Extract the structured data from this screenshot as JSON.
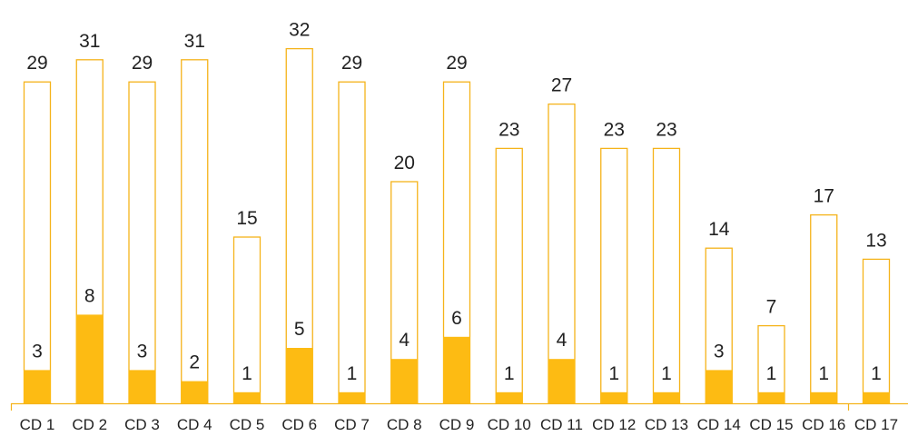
{
  "chart_data": {
    "type": "bar",
    "categories": [
      "CD 1",
      "CD 2",
      "CD 3",
      "CD 4",
      "CD 5",
      "CD 6",
      "CD 7",
      "CD 8",
      "CD 9",
      "CD 10",
      "CD 11",
      "CD 12",
      "CD 13",
      "CD 14",
      "CD 15",
      "CD 16",
      "CD 17"
    ],
    "series": [
      {
        "values": [
          29,
          31,
          29,
          31,
          15,
          32,
          29,
          20,
          29,
          23,
          27,
          23,
          23,
          14,
          7,
          17,
          13
        ]
      },
      {
        "values": [
          3,
          8,
          3,
          2,
          1,
          5,
          1,
          4,
          6,
          1,
          4,
          1,
          1,
          3,
          1,
          1,
          1
        ]
      }
    ],
    "title": "",
    "xlabel": "",
    "ylabel": "",
    "ylim": [
      0,
      32
    ],
    "grid": false,
    "legend": "none",
    "colors": {
      "accent": "#FDBB13",
      "outline": "#F5B31A",
      "axis": "#F5B31A",
      "text": "#222222"
    }
  }
}
